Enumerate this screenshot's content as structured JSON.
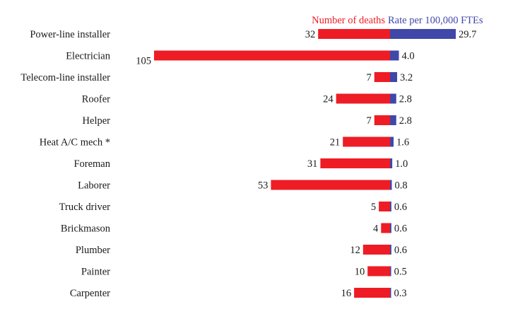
{
  "chart_data": {
    "type": "bar",
    "categories": [
      "Power-line installer",
      "Electrician",
      "Telecom-line installer",
      "Roofer",
      "Helper",
      "Heat A/C mech *",
      "Foreman",
      "Laborer",
      "Truck driver",
      "Brickmason",
      "Plumber",
      "Painter",
      "Carpenter"
    ],
    "series": [
      {
        "name": "Number of deaths",
        "color": "#ee1c25",
        "values": [
          32,
          105,
          7,
          24,
          7,
          21,
          31,
          53,
          5,
          4,
          12,
          10,
          16
        ],
        "labels": [
          "32",
          "105",
          "7",
          "24",
          "7",
          "21",
          "31",
          "53",
          "5",
          "4",
          "12",
          "10",
          "16"
        ]
      },
      {
        "name": "Rate per 100,000 FTEs",
        "color": "#3f48a8",
        "values": [
          29.7,
          4.0,
          3.2,
          2.8,
          2.8,
          1.6,
          1.0,
          0.8,
          0.6,
          0.6,
          0.6,
          0.5,
          0.3
        ],
        "labels": [
          "29.7",
          "4.0",
          "3.2",
          "2.8",
          "2.8",
          "1.6",
          "1.0",
          "0.8",
          "0.6",
          "0.6",
          "0.6",
          "0.5",
          "0.3"
        ]
      }
    ],
    "legend": [
      "Number of deaths",
      "Rate per 100,000 FTEs"
    ],
    "legend_position": "top-center",
    "grid": false,
    "title": "",
    "xlabel": "",
    "ylabel": ""
  }
}
